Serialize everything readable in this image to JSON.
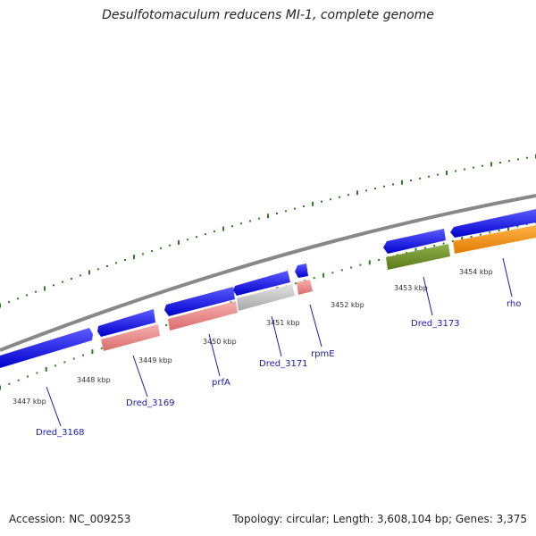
{
  "title": "Desulfotomaculum reducens MI-1, complete genome",
  "footer": {
    "accession": "Accession: NC_009253",
    "summary": "Topology: circular; Length: 3,608,104 bp; Genes: 3,375"
  },
  "colors": {
    "backbone": "#888888",
    "tick": "#2e7d1e",
    "cds": "#0000ee",
    "rna": "#f08080",
    "pseudo": "#c8c8c8",
    "other": "#6b8e23",
    "highlight": "#ff8c00",
    "label": "#1a1ab0"
  },
  "position_ticks": [
    "3447 kbp",
    "3448 kbp",
    "3449 kbp",
    "3450 kbp",
    "3451 kbp",
    "3452 kbp",
    "3453 kbp",
    "3454 kbp"
  ],
  "gene_labels": [
    "Dred_3168",
    "Dred_3169",
    "prfA",
    "Dred_3171",
    "rpmE",
    "Dred_3173",
    "rho"
  ]
}
